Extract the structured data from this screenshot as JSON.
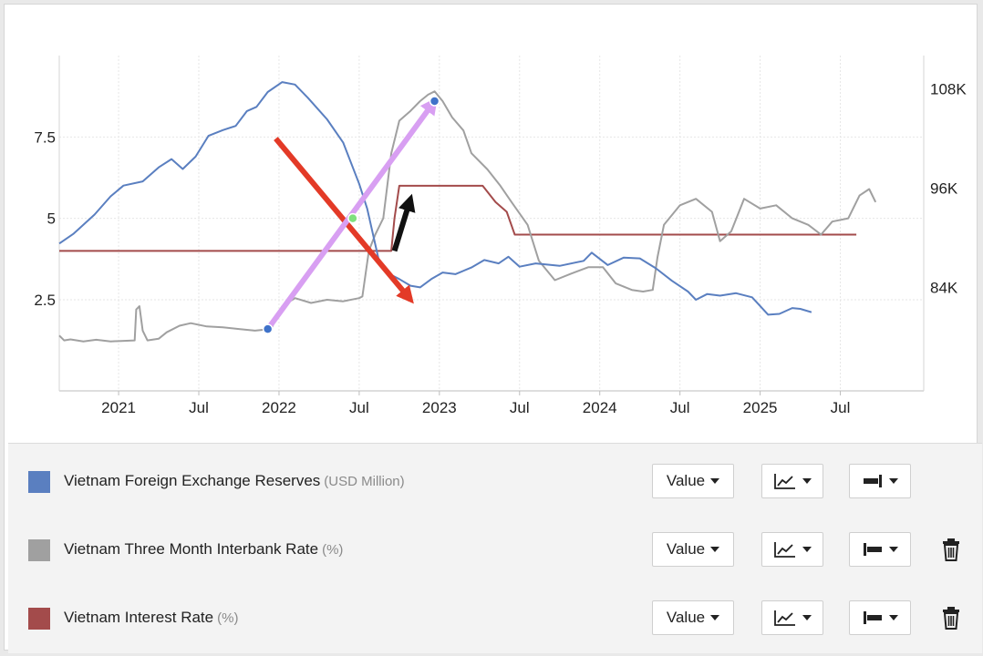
{
  "chart_data": {
    "type": "line",
    "x_axis": {
      "tick_labels": [
        "2021",
        "Jul",
        "2022",
        "Jul",
        "2023",
        "Jul",
        "2024",
        "Jul",
        "2025",
        "Jul"
      ],
      "tick_dates": [
        2021.0,
        2021.5,
        2022.0,
        2022.5,
        2023.0,
        2023.5,
        2024.0,
        2024.5,
        2025.0,
        2025.5
      ],
      "range": [
        2020.63,
        2026.02
      ]
    },
    "y_left": {
      "tick_labels": [
        "7.5",
        "5",
        "2.5"
      ],
      "ticks": [
        7.5,
        5,
        2.5
      ],
      "range": [
        -0.3,
        10.0
      ]
    },
    "y_right": {
      "tick_labels": [
        "108K",
        "96K",
        "84K"
      ],
      "ticks": [
        108000,
        96000,
        84000
      ],
      "range": [
        71500,
        112000
      ]
    },
    "grid": true,
    "series": [
      {
        "name": "Vietnam Foreign Exchange Reserves",
        "unit": "(USD Million)",
        "axis": "right",
        "color": "#5a7fc0",
        "points": [
          [
            2020.63,
            89300
          ],
          [
            2020.72,
            90500
          ],
          [
            2020.85,
            92800
          ],
          [
            2020.95,
            95000
          ],
          [
            2021.03,
            96300
          ],
          [
            2021.15,
            96800
          ],
          [
            2021.25,
            98500
          ],
          [
            2021.33,
            99500
          ],
          [
            2021.4,
            98300
          ],
          [
            2021.48,
            99800
          ],
          [
            2021.56,
            102300
          ],
          [
            2021.65,
            103000
          ],
          [
            2021.73,
            103500
          ],
          [
            2021.8,
            105300
          ],
          [
            2021.86,
            105800
          ],
          [
            2021.93,
            107600
          ],
          [
            2022.02,
            108800
          ],
          [
            2022.1,
            108500
          ],
          [
            2022.18,
            106900
          ],
          [
            2022.3,
            104300
          ],
          [
            2022.4,
            101500
          ],
          [
            2022.5,
            96500
          ],
          [
            2022.55,
            93500
          ],
          [
            2022.62,
            87500
          ],
          [
            2022.68,
            85700
          ],
          [
            2022.75,
            85000
          ],
          [
            2022.82,
            84200
          ],
          [
            2022.88,
            84000
          ],
          [
            2022.95,
            85000
          ],
          [
            2023.02,
            85800
          ],
          [
            2023.1,
            85600
          ],
          [
            2023.2,
            86400
          ],
          [
            2023.28,
            87300
          ],
          [
            2023.37,
            86900
          ],
          [
            2023.43,
            87700
          ],
          [
            2023.5,
            86500
          ],
          [
            2023.6,
            86900
          ],
          [
            2023.75,
            86600
          ],
          [
            2023.9,
            87200
          ],
          [
            2023.95,
            88200
          ],
          [
            2024.05,
            86700
          ],
          [
            2024.15,
            87600
          ],
          [
            2024.25,
            87500
          ],
          [
            2024.35,
            86300
          ],
          [
            2024.45,
            84800
          ],
          [
            2024.55,
            83500
          ],
          [
            2024.6,
            82500
          ],
          [
            2024.67,
            83200
          ],
          [
            2024.75,
            83000
          ],
          [
            2024.85,
            83300
          ],
          [
            2024.95,
            82800
          ],
          [
            2025.05,
            80700
          ],
          [
            2025.12,
            80800
          ],
          [
            2025.2,
            81500
          ],
          [
            2025.25,
            81400
          ],
          [
            2025.32,
            81000
          ]
        ]
      },
      {
        "name": "Vietnam Three Month Interbank Rate",
        "unit": "(%)",
        "axis": "left",
        "color": "#a0a0a0",
        "points": [
          [
            2020.63,
            1.4
          ],
          [
            2020.66,
            1.25
          ],
          [
            2020.7,
            1.28
          ],
          [
            2020.78,
            1.22
          ],
          [
            2020.86,
            1.27
          ],
          [
            2020.95,
            1.22
          ],
          [
            2021.05,
            1.24
          ],
          [
            2021.1,
            1.25
          ],
          [
            2021.11,
            2.2
          ],
          [
            2021.13,
            2.3
          ],
          [
            2021.15,
            1.55
          ],
          [
            2021.18,
            1.25
          ],
          [
            2021.25,
            1.3
          ],
          [
            2021.3,
            1.5
          ],
          [
            2021.38,
            1.7
          ],
          [
            2021.45,
            1.78
          ],
          [
            2021.55,
            1.68
          ],
          [
            2021.65,
            1.65
          ],
          [
            2021.75,
            1.6
          ],
          [
            2021.85,
            1.55
          ],
          [
            2021.95,
            1.6
          ],
          [
            2022.02,
            2.3
          ],
          [
            2022.1,
            2.55
          ],
          [
            2022.2,
            2.4
          ],
          [
            2022.3,
            2.5
          ],
          [
            2022.4,
            2.45
          ],
          [
            2022.5,
            2.55
          ],
          [
            2022.52,
            2.6
          ],
          [
            2022.56,
            4.0
          ],
          [
            2022.6,
            4.5
          ],
          [
            2022.65,
            5.0
          ],
          [
            2022.7,
            7.0
          ],
          [
            2022.75,
            8.0
          ],
          [
            2022.82,
            8.3
          ],
          [
            2022.88,
            8.6
          ],
          [
            2022.93,
            8.8
          ],
          [
            2022.97,
            8.9
          ],
          [
            2023.02,
            8.6
          ],
          [
            2023.08,
            8.1
          ],
          [
            2023.15,
            7.7
          ],
          [
            2023.2,
            7.0
          ],
          [
            2023.3,
            6.5
          ],
          [
            2023.38,
            6.0
          ],
          [
            2023.45,
            5.5
          ],
          [
            2023.55,
            4.8
          ],
          [
            2023.62,
            3.7
          ],
          [
            2023.72,
            3.1
          ],
          [
            2023.82,
            3.3
          ],
          [
            2023.93,
            3.5
          ],
          [
            2024.02,
            3.5
          ],
          [
            2024.1,
            3.0
          ],
          [
            2024.2,
            2.8
          ],
          [
            2024.27,
            2.75
          ],
          [
            2024.33,
            2.8
          ],
          [
            2024.36,
            3.8
          ],
          [
            2024.4,
            4.8
          ],
          [
            2024.5,
            5.4
          ],
          [
            2024.6,
            5.6
          ],
          [
            2024.7,
            5.2
          ],
          [
            2024.75,
            4.3
          ],
          [
            2024.82,
            4.6
          ],
          [
            2024.9,
            5.6
          ],
          [
            2025.0,
            5.3
          ],
          [
            2025.1,
            5.4
          ],
          [
            2025.2,
            5.0
          ],
          [
            2025.3,
            4.8
          ],
          [
            2025.38,
            4.5
          ],
          [
            2025.45,
            4.9
          ],
          [
            2025.55,
            5.0
          ],
          [
            2025.62,
            5.7
          ],
          [
            2025.68,
            5.9
          ],
          [
            2025.72,
            5.5
          ]
        ]
      },
      {
        "name": "Vietnam Interest Rate",
        "unit": "(%)",
        "axis": "left",
        "color": "#a34b4b",
        "points": [
          [
            2020.63,
            4.0
          ],
          [
            2022.7,
            4.0
          ],
          [
            2022.72,
            5.0
          ],
          [
            2022.75,
            6.0
          ],
          [
            2023.2,
            6.0
          ],
          [
            2023.27,
            6.0
          ],
          [
            2023.35,
            5.5
          ],
          [
            2023.42,
            5.2
          ],
          [
            2023.47,
            4.5
          ],
          [
            2023.52,
            4.5
          ],
          [
            2025.6,
            4.5
          ]
        ]
      }
    ],
    "annotations": [
      {
        "type": "arrow",
        "color": "#e33a27",
        "from_date": 2021.98,
        "from_value": 7.45,
        "to_date": 2022.82,
        "to_value": 2.5
      },
      {
        "type": "arrow",
        "color": "#d89ff2",
        "from_date": 2021.93,
        "from_value": 1.6,
        "to_date": 2022.97,
        "to_value": 8.6
      },
      {
        "type": "arrow",
        "color": "#111111",
        "from_date": 2022.72,
        "from_value": 4.0,
        "to_date": 2022.82,
        "to_value": 5.6
      }
    ],
    "markers": [
      {
        "color": "#3f72c9",
        "date": 2021.93,
        "value": 1.6
      },
      {
        "color": "#3f72c9",
        "date": 2022.97,
        "value": 8.6
      },
      {
        "color": "#7ee07e",
        "date": 2022.46,
        "value": 5.0
      }
    ]
  },
  "legend": [
    {
      "name": "Vietnam Foreign Exchange Reserves",
      "unit": "(USD Million)",
      "color": "#5a7fc0",
      "value_label": "Value",
      "deletable": false,
      "axis_icon": "axis-right-icon"
    },
    {
      "name": "Vietnam Three Month Interbank Rate",
      "unit": "(%)",
      "color": "#a0a0a0",
      "value_label": "Value",
      "deletable": true,
      "axis_icon": "axis-left-icon"
    },
    {
      "name": "Vietnam Interest Rate",
      "unit": "(%)",
      "color": "#a34b4b",
      "value_label": "Value",
      "deletable": true,
      "axis_icon": "axis-left-icon"
    }
  ]
}
